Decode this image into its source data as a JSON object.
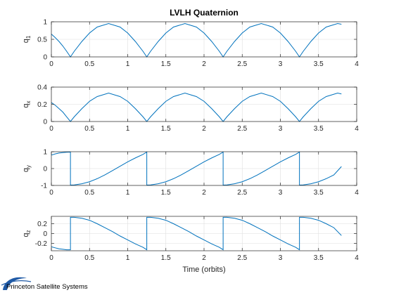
{
  "chart_data": {
    "type": "line",
    "title": "LVLH Quaternion",
    "xlabel": "Time (orbits)",
    "xlim": [
      0,
      4
    ],
    "xticks": [
      0,
      0.5,
      1,
      1.5,
      2,
      2.5,
      3,
      3.5,
      4
    ],
    "xtick_labels": [
      "0",
      "0.5",
      "1",
      "1.5",
      "2",
      "2.5",
      "3",
      "3.5",
      "4"
    ],
    "grid": true,
    "line_color": "#0072BD",
    "x_end": 3.8,
    "subplots": [
      {
        "ylabel": "q",
        "ylabel_sub": "1",
        "ylim": [
          0,
          1
        ],
        "yticks": [
          0,
          0.5,
          1
        ],
        "ytick_labels": [
          "0",
          "0.5",
          "1"
        ],
        "series": [
          {
            "x": [
              0,
              0.05,
              0.1,
              0.15,
              0.2,
              0.25,
              0.3,
              0.4,
              0.5,
              0.6,
              0.75,
              0.9,
              1.0,
              1.1,
              1.2,
              1.25,
              1.3,
              1.4,
              1.5,
              1.6,
              1.75,
              1.9,
              2.0,
              2.1,
              2.2,
              2.25,
              2.3,
              2.4,
              2.5,
              2.6,
              2.75,
              2.9,
              3.0,
              3.1,
              3.2,
              3.25,
              3.3,
              3.4,
              3.5,
              3.6,
              3.75,
              3.8
            ],
            "y": [
              0.65,
              0.55,
              0.44,
              0.31,
              0.16,
              0.0,
              0.16,
              0.44,
              0.68,
              0.85,
              0.95,
              0.85,
              0.68,
              0.44,
              0.16,
              0.0,
              0.16,
              0.44,
              0.68,
              0.85,
              0.95,
              0.85,
              0.68,
              0.44,
              0.16,
              0.0,
              0.16,
              0.44,
              0.68,
              0.85,
              0.95,
              0.85,
              0.68,
              0.44,
              0.16,
              0.0,
              0.16,
              0.44,
              0.68,
              0.85,
              0.95,
              0.93
            ]
          }
        ]
      },
      {
        "ylabel": "q",
        "ylabel_sub": "x",
        "ylim": [
          0,
          0.4
        ],
        "yticks": [
          0,
          0.2,
          0.4
        ],
        "ytick_labels": [
          "0",
          "0.2",
          "0.4"
        ],
        "series": [
          {
            "x": [
              0,
              0.05,
              0.1,
              0.15,
              0.2,
              0.25,
              0.3,
              0.4,
              0.5,
              0.6,
              0.75,
              0.9,
              1.0,
              1.1,
              1.2,
              1.25,
              1.3,
              1.4,
              1.5,
              1.6,
              1.75,
              1.9,
              2.0,
              2.1,
              2.2,
              2.25,
              2.3,
              2.4,
              2.5,
              2.6,
              2.75,
              2.9,
              3.0,
              3.1,
              3.2,
              3.25,
              3.3,
              3.4,
              3.5,
              3.6,
              3.75,
              3.8
            ],
            "y": [
              0.22,
              0.19,
              0.15,
              0.11,
              0.055,
              0.0,
              0.055,
              0.15,
              0.235,
              0.29,
              0.33,
              0.29,
              0.235,
              0.15,
              0.055,
              0.0,
              0.055,
              0.15,
              0.235,
              0.29,
              0.33,
              0.29,
              0.235,
              0.15,
              0.055,
              0.0,
              0.055,
              0.15,
              0.235,
              0.29,
              0.33,
              0.29,
              0.235,
              0.15,
              0.055,
              0.0,
              0.055,
              0.15,
              0.235,
              0.29,
              0.33,
              0.32
            ]
          }
        ]
      },
      {
        "ylabel": "q",
        "ylabel_sub": "y",
        "ylim": [
          -1,
          1
        ],
        "yticks": [
          -1,
          0,
          1
        ],
        "ytick_labels": [
          "-1",
          "0",
          "1"
        ],
        "series": [
          {
            "x": [
              0,
              0.05,
              0.1,
              0.15,
              0.2,
              0.25,
              0.25,
              0.3,
              0.4,
              0.5,
              0.6,
              0.7,
              0.8,
              0.9,
              1.0,
              1.1,
              1.2,
              1.25,
              1.25,
              1.3,
              1.4,
              1.5,
              1.6,
              1.7,
              1.8,
              1.9,
              2.0,
              2.1,
              2.2,
              2.25,
              2.25,
              2.3,
              2.4,
              2.5,
              2.6,
              2.7,
              2.8,
              2.9,
              3.0,
              3.1,
              3.2,
              3.25,
              3.25,
              3.3,
              3.4,
              3.5,
              3.6,
              3.7,
              3.8
            ],
            "y": [
              0.8,
              0.87,
              0.92,
              0.95,
              0.97,
              0.98,
              -0.98,
              -0.97,
              -0.9,
              -0.78,
              -0.6,
              -0.38,
              -0.12,
              0.14,
              0.4,
              0.63,
              0.84,
              0.98,
              -0.98,
              -0.97,
              -0.9,
              -0.78,
              -0.6,
              -0.38,
              -0.12,
              0.14,
              0.4,
              0.63,
              0.84,
              0.98,
              -0.98,
              -0.97,
              -0.9,
              -0.78,
              -0.6,
              -0.38,
              -0.12,
              0.14,
              0.4,
              0.63,
              0.84,
              0.98,
              -0.98,
              -0.97,
              -0.9,
              -0.78,
              -0.6,
              -0.38,
              0.12
            ]
          }
        ]
      },
      {
        "ylabel": "q",
        "ylabel_sub": "z",
        "ylim": [
          -0.35,
          0.35
        ],
        "yticks": [
          -0.2,
          0,
          0.2
        ],
        "ytick_labels": [
          "-0.2",
          "0",
          "0.2"
        ],
        "series": [
          {
            "x": [
              0,
              0.05,
              0.1,
              0.15,
              0.2,
              0.25,
              0.25,
              0.3,
              0.4,
              0.5,
              0.6,
              0.7,
              0.8,
              0.9,
              1.0,
              1.1,
              1.2,
              1.25,
              1.25,
              1.3,
              1.4,
              1.5,
              1.6,
              1.7,
              1.8,
              1.9,
              2.0,
              2.1,
              2.2,
              2.25,
              2.25,
              2.3,
              2.4,
              2.5,
              2.6,
              2.7,
              2.8,
              2.9,
              3.0,
              3.1,
              3.2,
              3.25,
              3.25,
              3.3,
              3.4,
              3.5,
              3.6,
              3.7,
              3.8
            ],
            "y": [
              -0.27,
              -0.29,
              -0.31,
              -0.32,
              -0.33,
              -0.33,
              0.33,
              0.33,
              0.31,
              0.27,
              0.2,
              0.12,
              0.04,
              -0.05,
              -0.13,
              -0.21,
              -0.28,
              -0.33,
              0.33,
              0.33,
              0.31,
              0.27,
              0.2,
              0.12,
              0.04,
              -0.05,
              -0.13,
              -0.21,
              -0.28,
              -0.33,
              0.33,
              0.33,
              0.31,
              0.27,
              0.2,
              0.12,
              0.04,
              -0.05,
              -0.13,
              -0.21,
              -0.28,
              -0.33,
              0.33,
              0.33,
              0.31,
              0.27,
              0.2,
              0.12,
              -0.04
            ]
          }
        ]
      }
    ]
  },
  "logo": {
    "text": "Princeton Satellite Systems",
    "color": "#1f5aa6"
  }
}
